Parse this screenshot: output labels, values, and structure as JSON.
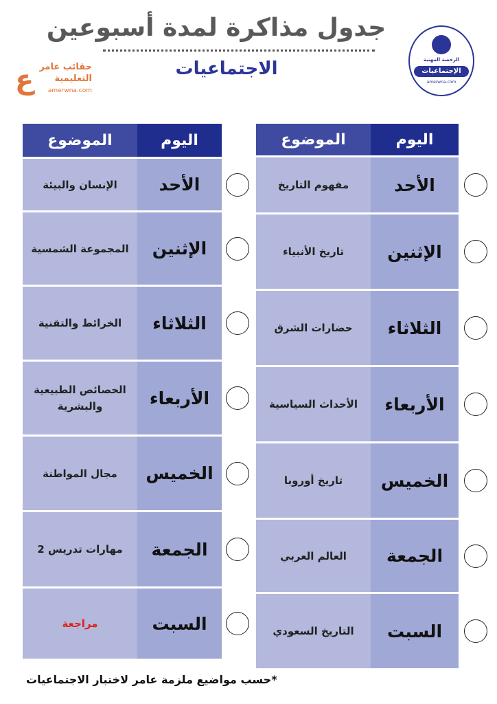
{
  "title": "جدول مذاكرة لمدة أسبوعين",
  "subtitle": "الاجتماعيات",
  "brand": {
    "line1": "حقائب عامر",
    "line2": "التعليمية",
    "url": "amerwna.com"
  },
  "seal": {
    "line1": "الرخصة المهنية",
    "line2": "الإجتماعيات",
    "url": "amerwna.com"
  },
  "headers": {
    "day": "اليوم",
    "topic": "الموضوع"
  },
  "week1": [
    {
      "day": "الأحد",
      "topic": "مفهوم التاريخ"
    },
    {
      "day": "الإثنين",
      "topic": "تاريخ الأنبياء"
    },
    {
      "day": "الثلاثاء",
      "topic": "حضارات الشرق"
    },
    {
      "day": "الأربعاء",
      "topic": "الأحداث السياسية"
    },
    {
      "day": "الخميس",
      "topic": "تاريخ أوروبا"
    },
    {
      "day": "الجمعة",
      "topic": "العالم العربي"
    },
    {
      "day": "السبت",
      "topic": "التاريخ السعودي"
    }
  ],
  "week2": [
    {
      "day": "الأحد",
      "topic": "الإنسان والبيئة"
    },
    {
      "day": "الإثنين",
      "topic": "المجموعة الشمسية"
    },
    {
      "day": "الثلاثاء",
      "topic": "الخرائط والتقنية"
    },
    {
      "day": "الأربعاء",
      "topic": "الخصائص الطبيعية والبشرية"
    },
    {
      "day": "الخميس",
      "topic": "مجال المواطنة"
    },
    {
      "day": "الجمعة",
      "topic": "مهارات تدريس 2"
    },
    {
      "day": "السبت",
      "topic": "مراجعة"
    }
  ],
  "note": "*حسب مواضيع ملزمة عامر لاختبار الاجتماعيات",
  "colors": {
    "header": "#1f2d8f",
    "day_cell": "#a0a8d6",
    "topic_cell": "#b3b8dc",
    "title": "#58595b",
    "subtitle": "#2b3598",
    "brand": "#e1763a",
    "review": "#e0201b"
  }
}
